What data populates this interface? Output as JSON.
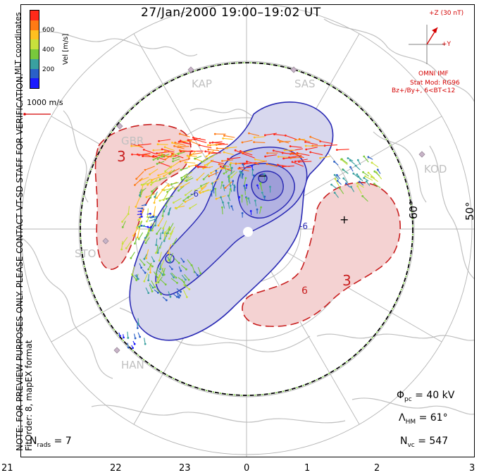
{
  "title": "27/Jan/2000 19:00–19:02 UT",
  "side_note": {
    "line1": "NOTE: FOR PREVIEW PURPOSES ONLY. PLEASE CONTACT VT-SD STAFF FOR VERIFICATION.",
    "line2": "FitOrder: 8,  mapEX format"
  },
  "mlt_label": "MLT coordinates",
  "colorbar": {
    "label": "Vel [m/s]",
    "ticks": [
      "600",
      "400",
      "200"
    ],
    "colors": [
      "#1a1aff",
      "#2a60c8",
      "#3aa0a0",
      "#78c83c",
      "#c8e03c",
      "#ffc020",
      "#ff7a14",
      "#ff2a1a"
    ]
  },
  "scale_vector": "1000 m/s",
  "imf": {
    "z_label": "+Z (30 nT)",
    "y_label": "+Y",
    "source": "OMNI IMF",
    "model": "Stat Mod: RG96",
    "condition": "Bz+/By+, 6<BT<12"
  },
  "stations": [
    "KAP",
    "SAS",
    "GBR",
    "KOD",
    "STO",
    "HAN"
  ],
  "lat_labels": [
    "60°",
    "50°"
  ],
  "contour_labels": [
    "3",
    "3",
    "-6",
    "-6",
    "6"
  ],
  "potential_marks": [
    "−",
    "+"
  ],
  "stats": {
    "phi_label": "Φ",
    "phi_sub": "pc",
    "phi_value": "= 40 kV",
    "lambda_label": "Λ",
    "lambda_sub": "HM",
    "lambda_value": "= 61°",
    "nvc_label": "N",
    "nvc_sub": "vc",
    "nvc_value": "= 547",
    "nrads_label": "N",
    "nrads_sub": "rads",
    "nrads_value": "= 7"
  },
  "mlt_ticks": [
    "21",
    "22",
    "23",
    "0",
    "1",
    "2",
    "3"
  ],
  "colors": {
    "negative_cell": "#2a2ab4",
    "positive_cell": "#c81e1e",
    "boundary": "#000000",
    "map_outline": "#c8c8c8"
  }
}
